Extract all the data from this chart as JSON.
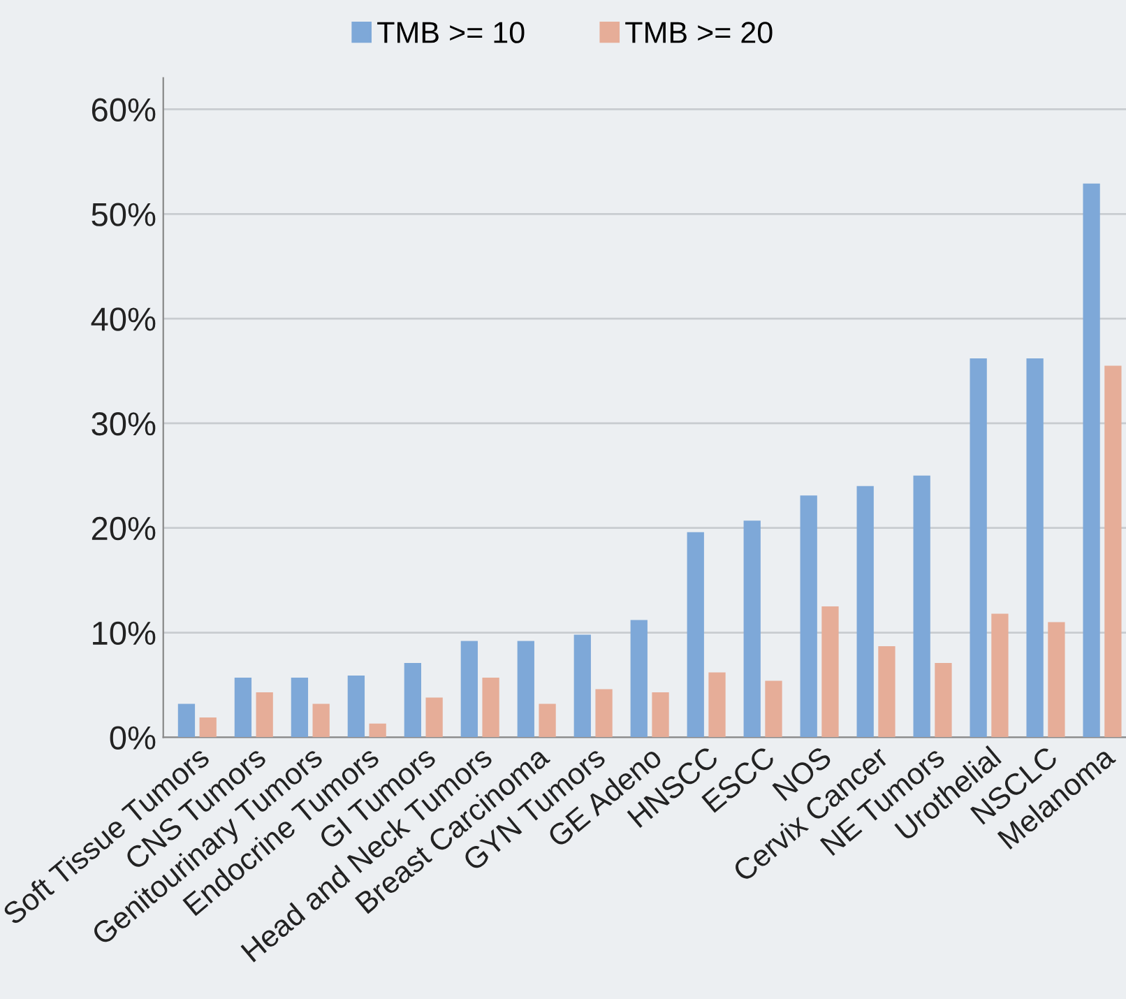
{
  "chart_data": {
    "type": "bar",
    "categories": [
      "Soft Tissue Tumors",
      "CNS Tumors",
      "Genitourinary Tumors",
      "Endocrine Tumors",
      "GI Tumors",
      "Head and Neck Tumors",
      "Breast Carcinoma",
      "GYN Tumors",
      "GE Adeno",
      "HNSCC",
      "ESCC",
      "NOS",
      "Cervix Cancer",
      "NE Tumors",
      "Urothelial",
      "NSCLC",
      "Melanoma"
    ],
    "series": [
      {
        "name": "TMB >= 10",
        "color": "#7ea8d8",
        "values": [
          3.2,
          5.7,
          5.7,
          5.9,
          7.1,
          9.2,
          9.2,
          9.8,
          11.2,
          19.6,
          20.7,
          23.1,
          24.0,
          25.0,
          36.2,
          36.2,
          52.9
        ]
      },
      {
        "name": "TMB >= 20",
        "color": "#e6ad98",
        "values": [
          1.9,
          4.3,
          3.2,
          1.3,
          3.8,
          5.7,
          3.2,
          4.6,
          4.3,
          6.2,
          5.4,
          12.5,
          8.7,
          7.1,
          11.8,
          11.0,
          35.5
        ]
      }
    ],
    "ylim": [
      0,
      63
    ],
    "yticks": [
      {
        "value": 0,
        "label": "0%"
      },
      {
        "value": 10,
        "label": "10%"
      },
      {
        "value": 20,
        "label": "20%"
      },
      {
        "value": 30,
        "label": "30%"
      },
      {
        "value": 40,
        "label": "40%"
      },
      {
        "value": 50,
        "label": "50%"
      },
      {
        "value": 60,
        "label": "60%"
      }
    ],
    "grid": "y",
    "legend": "top"
  }
}
